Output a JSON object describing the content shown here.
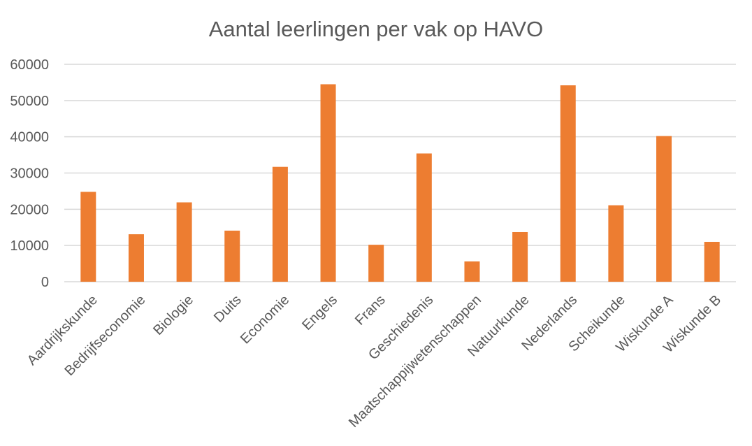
{
  "chart_data": {
    "type": "bar",
    "title": "Aantal leerlingen per vak op HAVO",
    "xlabel": "",
    "ylabel": "",
    "categories": [
      "Aardrijkskunde",
      "Bedrijfseconomie",
      "Biologie",
      "Duits",
      "Economie",
      "Engels",
      "Frans",
      "Geschiedenis",
      "Maatschappijwetenschappen",
      "Natuurkunde",
      "Nederlands",
      "Scheikunde",
      "Wiskunde A",
      "Wiskunde B"
    ],
    "values": [
      24800,
      13100,
      21900,
      14100,
      31700,
      54500,
      10200,
      35400,
      5600,
      13700,
      54200,
      21100,
      40200,
      11000
    ],
    "ylim": [
      0,
      60000
    ],
    "yticks": [
      "0",
      "10000",
      "20000",
      "30000",
      "40000",
      "50000",
      "60000"
    ],
    "grid": true,
    "legend": "none",
    "bar_color": "#ed7d31"
  }
}
